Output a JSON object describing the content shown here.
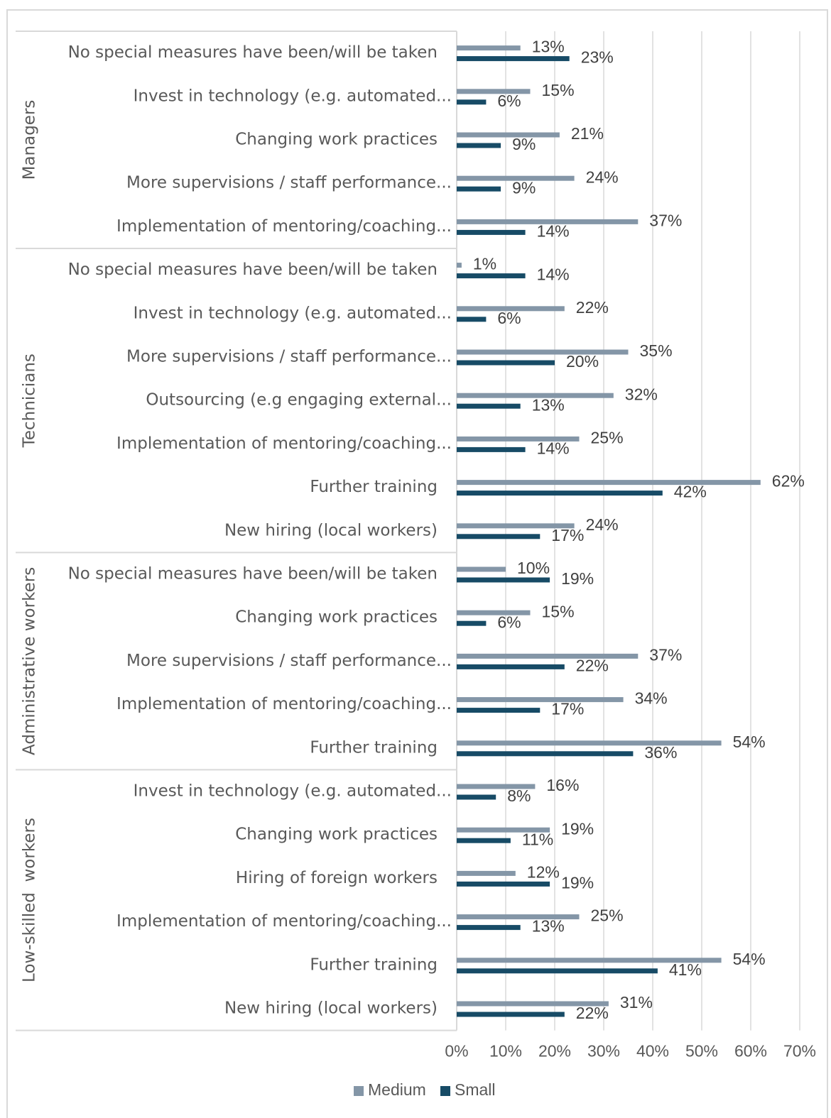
{
  "chart_data": {
    "type": "bar",
    "orientation": "horizontal",
    "groups": [
      {
        "name": "Managers",
        "categories": [
          "No special measures have been/will be taken",
          "Invest in technology (e.g. automated...",
          "Changing work practices",
          "More supervisions / staff performance...",
          "Implementation of mentoring/coaching..."
        ]
      },
      {
        "name": "Technicians",
        "categories": [
          "No special measures have been/will be taken",
          "Invest in technology (e.g. automated...",
          "More supervisions / staff performance...",
          "Outsourcing (e.g engaging external...",
          "Implementation of mentoring/coaching...",
          "Further training",
          "New hiring (local workers)"
        ]
      },
      {
        "name": "Administrative workers",
        "categories": [
          "No special measures have been/will be taken",
          "Changing work practices",
          "More supervisions / staff performance...",
          "Implementation of mentoring/coaching...",
          "Further training"
        ]
      },
      {
        "name": "Low-skilled  workers",
        "categories": [
          "Invest in technology (e.g. automated...",
          "Changing work practices",
          "Hiring of foreign workers",
          "Implementation of mentoring/coaching...",
          "Further training",
          "New hiring (local workers)"
        ]
      }
    ],
    "series": [
      {
        "name": "Medium",
        "color": "#8496a7",
        "values": [
          [
            13,
            15,
            21,
            24,
            37
          ],
          [
            1,
            22,
            35,
            32,
            25,
            62,
            24
          ],
          [
            10,
            15,
            37,
            34,
            54
          ],
          [
            16,
            19,
            12,
            25,
            54,
            31
          ]
        ],
        "value_labels": [
          [
            "13%",
            "15%",
            "21%",
            "24%",
            "37%"
          ],
          [
            "1%",
            "22%",
            "35%",
            "32%",
            "25%",
            "62%",
            "24%"
          ],
          [
            "10%",
            "15%",
            "37%",
            "34%",
            "54%"
          ],
          [
            "16%",
            "19%",
            "12%",
            "25%",
            "54%",
            "31%"
          ]
        ]
      },
      {
        "name": "Small",
        "color": "#174b66",
        "values": [
          [
            23,
            6,
            9,
            9,
            14
          ],
          [
            14,
            6,
            20,
            13,
            14,
            42,
            17
          ],
          [
            19,
            6,
            22,
            17,
            36
          ],
          [
            8,
            11,
            19,
            13,
            41,
            22
          ]
        ],
        "value_labels": [
          [
            "23%",
            "6%",
            "9%",
            "9%",
            "14%"
          ],
          [
            "14%",
            "6%",
            "20%",
            "13%",
            "14%",
            "42%",
            "17%"
          ],
          [
            "19%",
            "6%",
            "22%",
            "17%",
            "36%"
          ],
          [
            "8%",
            "11%",
            "19%",
            "13%",
            "41%",
            "22%"
          ]
        ]
      }
    ],
    "xlim": [
      0,
      70
    ],
    "xticks": [
      {
        "value": 0,
        "label": "0%"
      },
      {
        "value": 10,
        "label": "10%"
      },
      {
        "value": 20,
        "label": "20%"
      },
      {
        "value": 30,
        "label": "30%"
      },
      {
        "value": 40,
        "label": "40%"
      },
      {
        "value": 50,
        "label": "50%"
      },
      {
        "value": 60,
        "label": "60%"
      },
      {
        "value": 70,
        "label": "70%"
      }
    ],
    "grid": true,
    "legend": "bottom"
  }
}
